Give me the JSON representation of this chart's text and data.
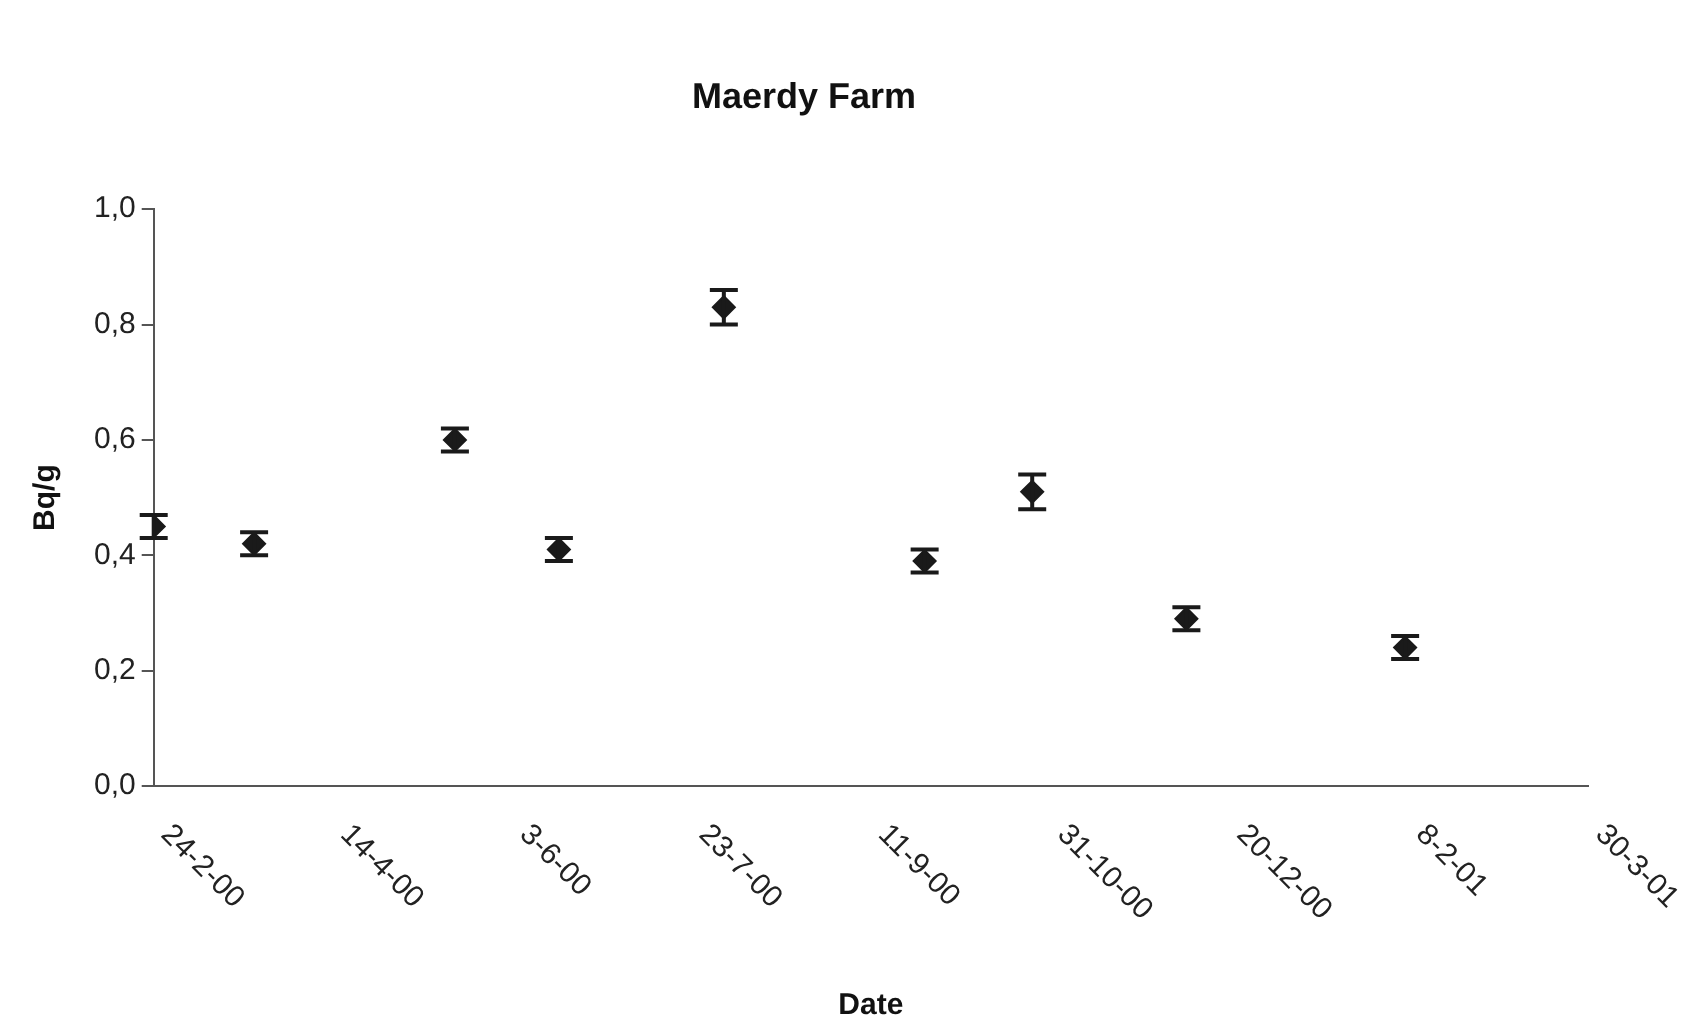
{
  "chart_data": {
    "type": "scatter",
    "title": "Maerdy Farm",
    "xlabel": "Date",
    "ylabel": "Bq/g",
    "x": [
      "2000-02-24",
      "2000-03-23",
      "2000-05-18",
      "2000-06-16",
      "2000-08-01",
      "2000-09-26",
      "2000-10-26",
      "2000-12-08",
      "2001-02-07"
    ],
    "series": [
      {
        "color": "#1a1a1a",
        "values": [
          0.45,
          0.42,
          0.6,
          0.41,
          0.83,
          0.39,
          0.51,
          0.29,
          0.24
        ],
        "errors": [
          0.02,
          0.02,
          0.02,
          0.02,
          0.03,
          0.02,
          0.03,
          0.02,
          0.02
        ]
      }
    ],
    "xlim": [
      "2000-02-24",
      "2001-03-30"
    ],
    "xticks": [
      {
        "value": "2000-02-24",
        "label": "24-2-00"
      },
      {
        "value": "2000-04-14",
        "label": "14-4-00"
      },
      {
        "value": "2000-06-03",
        "label": "3-6-00"
      },
      {
        "value": "2000-07-23",
        "label": "23-7-00"
      },
      {
        "value": "2000-09-11",
        "label": "11-9-00"
      },
      {
        "value": "2000-10-31",
        "label": "31-10-00"
      },
      {
        "value": "2000-12-20",
        "label": "20-12-00"
      },
      {
        "value": "2001-02-08",
        "label": "8-2-01"
      },
      {
        "value": "2001-03-30",
        "label": "30-3-01"
      }
    ],
    "ylim": [
      0,
      1
    ],
    "yticks": [
      {
        "value": 0,
        "label": "0,0"
      },
      {
        "value": 0.2,
        "label": "0,2"
      },
      {
        "value": 0.4,
        "label": "0,4"
      },
      {
        "value": 0.6,
        "label": "0,6"
      },
      {
        "value": 0.8,
        "label": "0,8"
      },
      {
        "value": 1,
        "label": "1,0"
      }
    ],
    "grid": false,
    "legend": false,
    "marker": "diamond"
  }
}
